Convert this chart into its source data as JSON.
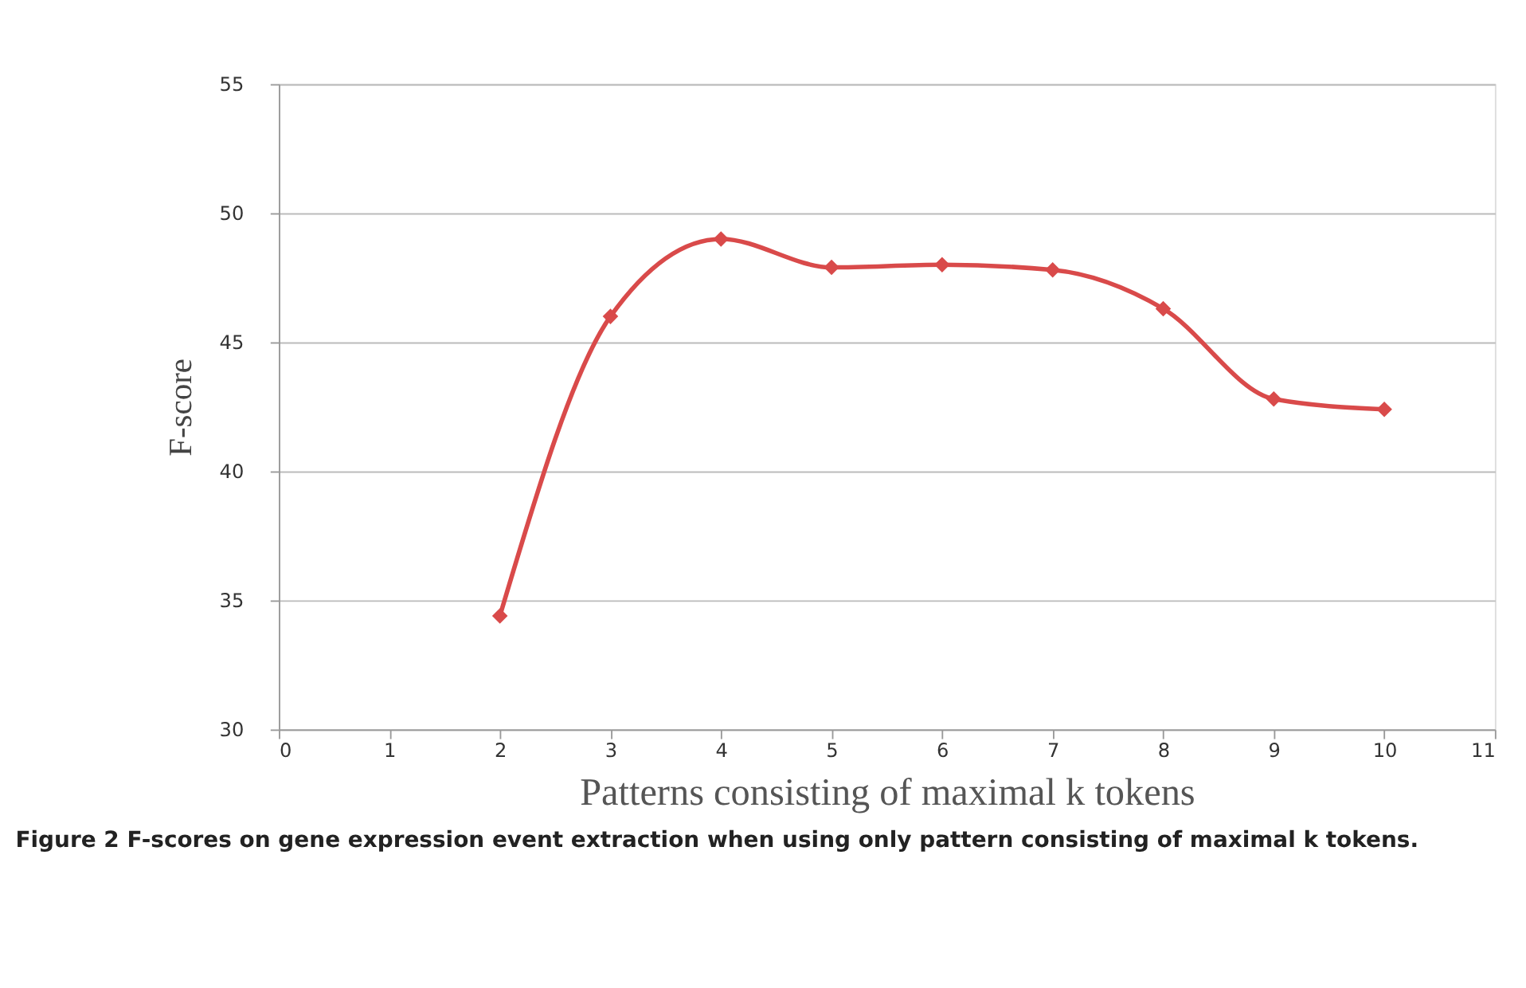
{
  "chart_data": {
    "type": "line",
    "xlabel": "Patterns consisting of maximal k tokens",
    "ylabel": "F-score",
    "x": [
      2,
      3,
      4,
      5,
      6,
      7,
      8,
      9,
      10
    ],
    "series": [
      {
        "color": "#d94a4a",
        "values": [
          34.4,
          46.0,
          49.0,
          47.9,
          48.0,
          47.8,
          46.3,
          42.8,
          42.4
        ]
      }
    ],
    "xlim": [
      0,
      11
    ],
    "xticks": [
      0,
      1,
      2,
      3,
      4,
      5,
      6,
      7,
      8,
      9,
      10,
      11
    ],
    "ylim": [
      30,
      55
    ],
    "yticks": [
      30,
      35,
      40,
      45,
      50,
      55
    ],
    "grid": "y",
    "marker": "diamond",
    "line_style": "solid",
    "annotations": [
      "Figure 2 F-scores on gene expression event extraction when using only pattern consisting of maximal k tokens."
    ]
  }
}
